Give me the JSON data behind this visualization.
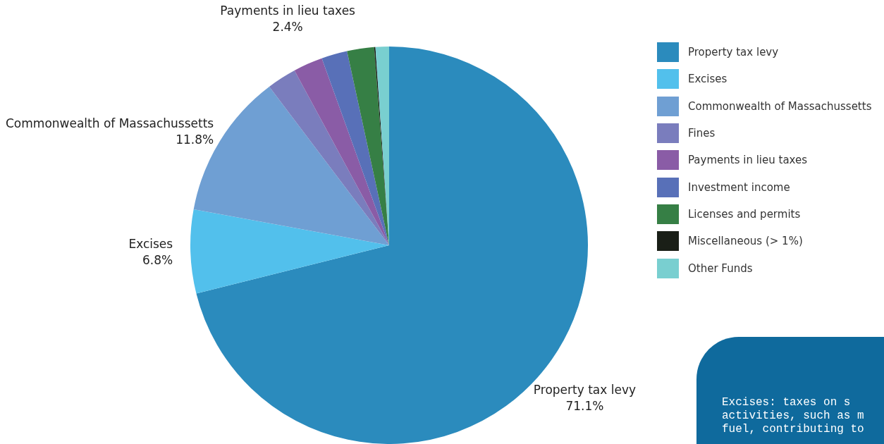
{
  "chart_data": {
    "type": "pie",
    "categories": [
      "Property tax levy",
      "Excises",
      "Commonwealth of Massachussetts",
      "Fines",
      "Payments in lieu taxes",
      "Investment income",
      "Licenses and permits",
      "Miscellaneous (> 1%)",
      "Other Funds"
    ],
    "values": [
      71.1,
      6.8,
      11.8,
      2.4,
      2.4,
      2.1,
      2.2,
      0.1,
      1.1
    ],
    "colors": [
      "#2b8bbd",
      "#52c0ec",
      "#6f9fd3",
      "#7a7dbd",
      "#8a5ca6",
      "#5870b8",
      "#367f45",
      "#1a1f17",
      "#79cfd0"
    ],
    "value_labels": [
      "71.1%",
      "6.8%",
      "11.8%",
      null,
      "2.4%",
      null,
      null,
      null,
      null
    ],
    "legend": "right",
    "annotations": [
      "Excises: taxes on s activities, such as m fuel, contributing to"
    ]
  }
}
